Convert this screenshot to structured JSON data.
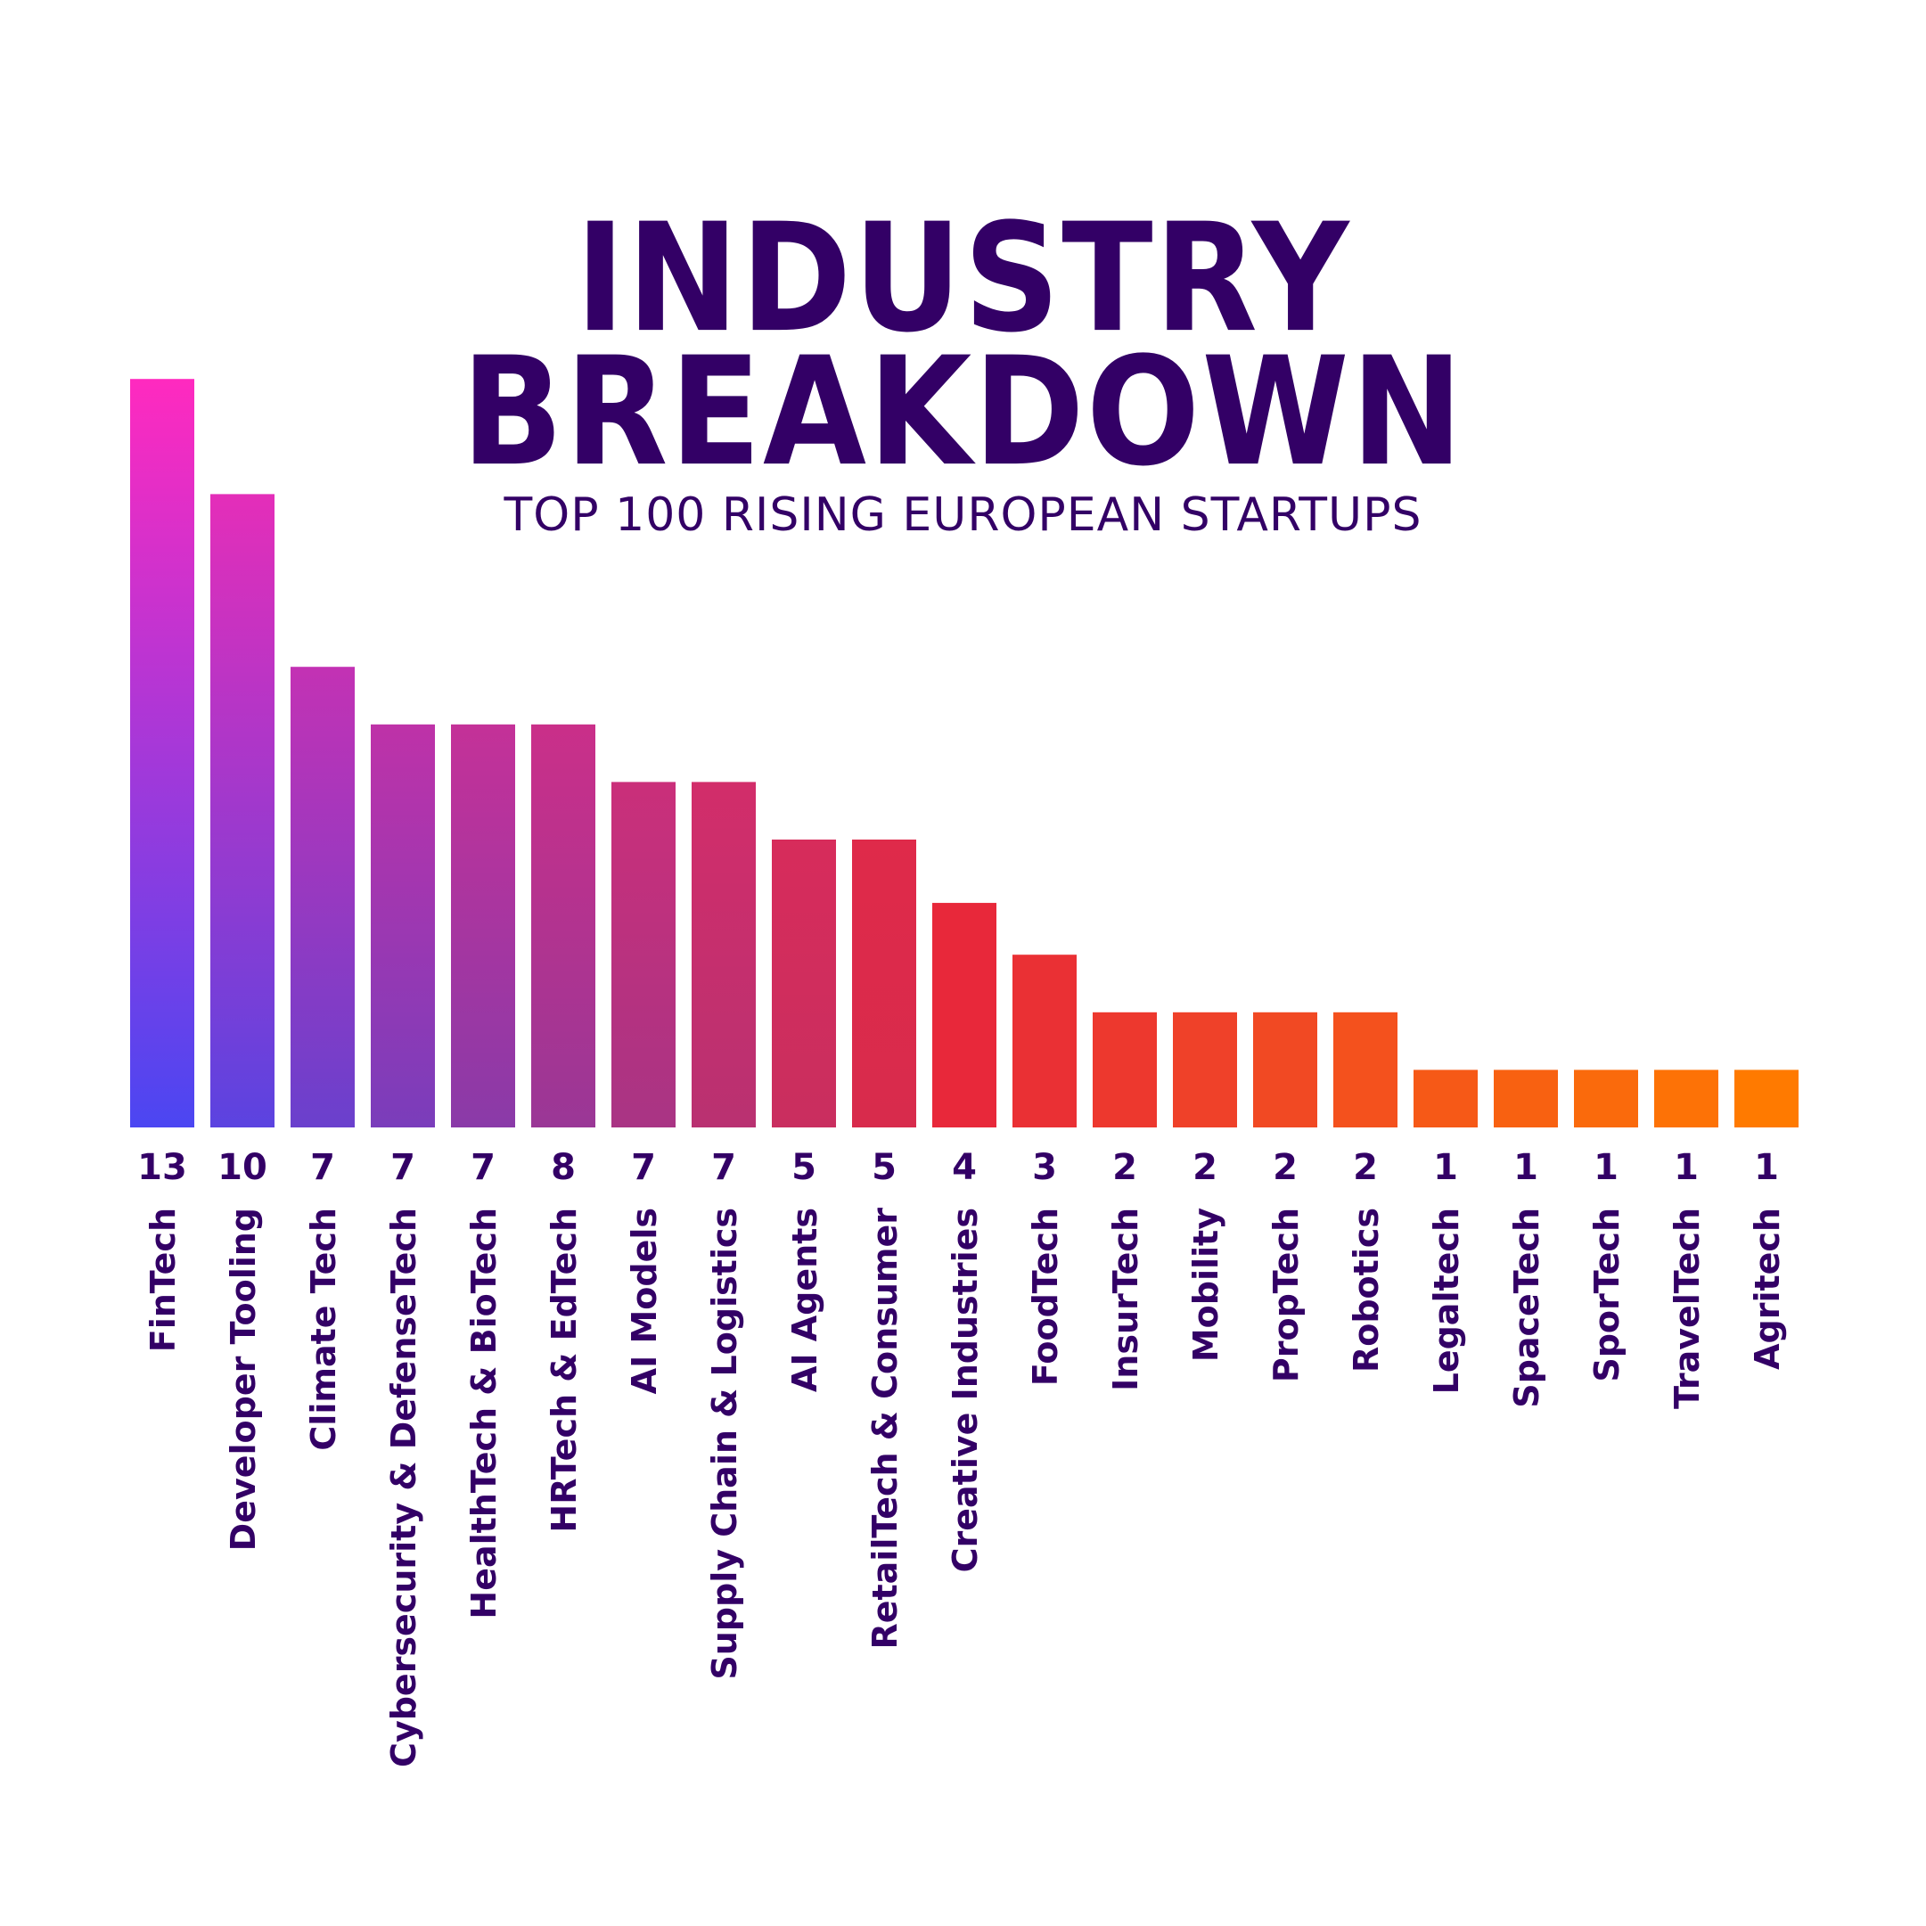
{
  "title_line1": "INDUSTRY",
  "title_line2": "BREAKDOWN",
  "subtitle": "TOP 100 RISING EUROPEAN STARTUPS",
  "colors": {
    "title": "#330066",
    "bar_left_bottom": "#4B46F2",
    "bar_left_top": "#FF2ABF",
    "bar_right": "#FF7A00",
    "label": "#330066"
  },
  "chart_data": {
    "type": "bar",
    "title": "INDUSTRY BREAKDOWN",
    "subtitle": "TOP 100 RISING EUROPEAN STARTUPS",
    "categories": [
      "FinTech",
      "Developer Tooling",
      "Climate Tech",
      "Cybersecurity & DefenseTech",
      "HealthTech & BioTech",
      "HRTech & EdTech",
      "AI Models",
      "Supply Chain & Logistics",
      "AI Agents",
      "RetailTech & Consumer",
      "Creative Industries",
      "FoodTech",
      "InsurTech",
      "Mobility",
      "PropTech",
      "Robotics",
      "Legaltech",
      "SpaceTech",
      "SporTech",
      "TravelTech",
      "Agritech"
    ],
    "values": [
      13,
      10,
      7,
      7,
      7,
      8,
      7,
      7,
      5,
      5,
      4,
      3,
      2,
      2,
      2,
      2,
      1,
      1,
      1,
      1,
      1
    ],
    "value_labels": [
      "13",
      "10",
      "7",
      "7",
      "7",
      "8",
      "7",
      "7",
      "5",
      "5",
      "4",
      "3",
      "2",
      "2",
      "2",
      "2",
      "1",
      "1",
      "1",
      "1",
      "1"
    ],
    "bar_heights_relative": [
      13,
      11,
      8,
      7,
      7,
      7,
      6,
      6,
      5,
      5,
      3.9,
      3,
      2,
      2,
      2,
      2,
      1,
      1,
      1,
      1,
      1
    ],
    "xlabel": "",
    "ylabel": "",
    "grid": false,
    "legend": "none"
  }
}
